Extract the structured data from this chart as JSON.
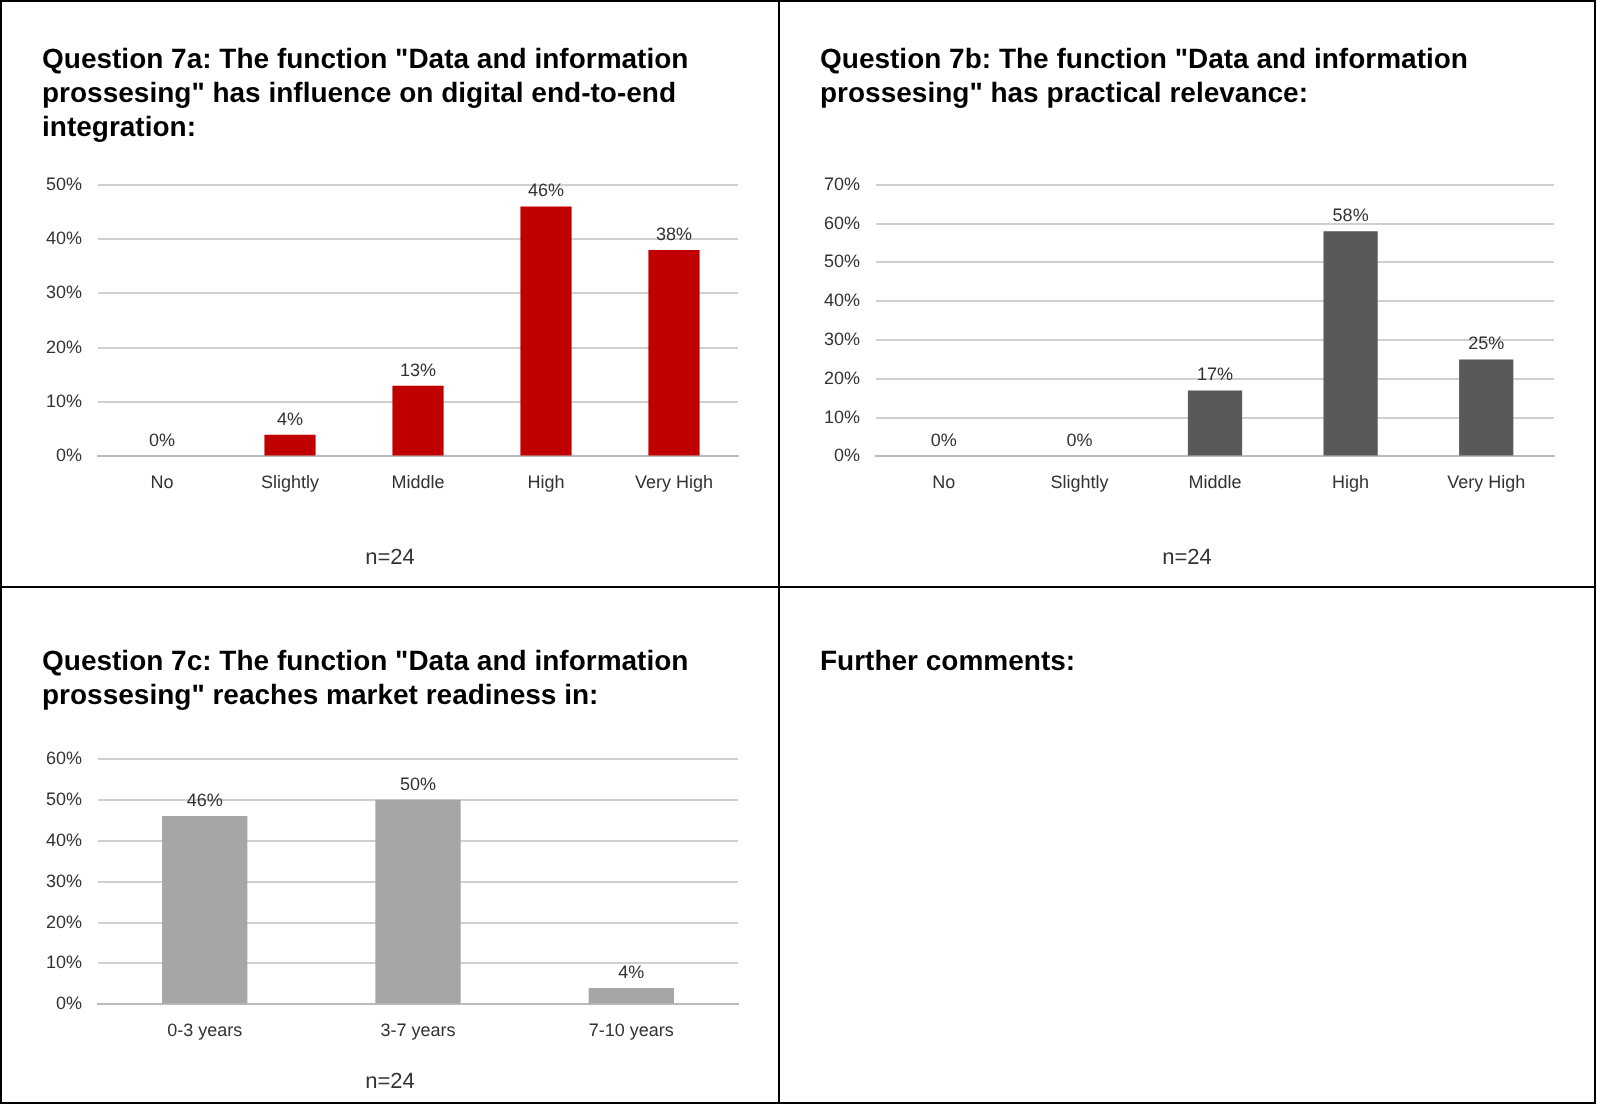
{
  "chart_data": [
    {
      "type": "bar",
      "title": "Question 7a: The function \"Data and information prossesing\" has influence on digital end-to-end integration:",
      "categories": [
        "No",
        "Slightly",
        "Middle",
        "High",
        "Very High"
      ],
      "values": [
        0,
        4,
        13,
        46,
        38
      ],
      "value_labels": [
        "0%",
        "4%",
        "13%",
        "46%",
        "38%"
      ],
      "color": "#c00000",
      "ylim": [
        0,
        50
      ],
      "yticks": [
        {
          "value": 0,
          "label": "0%"
        },
        {
          "value": 10,
          "label": "10%"
        },
        {
          "value": 20,
          "label": "20%"
        },
        {
          "value": 30,
          "label": "30%"
        },
        {
          "value": 40,
          "label": "40%"
        },
        {
          "value": 50,
          "label": "50%"
        }
      ],
      "grid": "y",
      "legend": false,
      "annotations": [
        "n=24"
      ]
    },
    {
      "type": "bar",
      "title": "Question 7b: The function \"Data and information prossesing\" has practical relevance:",
      "categories": [
        "No",
        "Slightly",
        "Middle",
        "High",
        "Very High"
      ],
      "values": [
        0,
        0,
        17,
        58,
        25
      ],
      "value_labels": [
        "0%",
        "0%",
        "17%",
        "58%",
        "25%"
      ],
      "color": "#595959",
      "ylim": [
        0,
        70
      ],
      "yticks": [
        {
          "value": 0,
          "label": "0%"
        },
        {
          "value": 10,
          "label": "10%"
        },
        {
          "value": 20,
          "label": "20%"
        },
        {
          "value": 30,
          "label": "30%"
        },
        {
          "value": 40,
          "label": "40%"
        },
        {
          "value": 50,
          "label": "50%"
        },
        {
          "value": 60,
          "label": "60%"
        },
        {
          "value": 70,
          "label": "70%"
        }
      ],
      "grid": "y",
      "legend": false,
      "annotations": [
        "n=24"
      ]
    },
    {
      "type": "bar",
      "title": "Question 7c: The function \"Data and information prossesing\" reaches market readiness in:",
      "categories": [
        "0-3 years",
        "3-7 years",
        "7-10 years"
      ],
      "values": [
        46,
        50,
        4
      ],
      "value_labels": [
        "46%",
        "50%",
        "4%"
      ],
      "color": "#a6a6a6",
      "ylim": [
        0,
        60
      ],
      "yticks": [
        {
          "value": 0,
          "label": "0%"
        },
        {
          "value": 10,
          "label": "10%"
        },
        {
          "value": 20,
          "label": "20%"
        },
        {
          "value": 30,
          "label": "30%"
        },
        {
          "value": 40,
          "label": "40%"
        },
        {
          "value": 50,
          "label": "50%"
        },
        {
          "value": 60,
          "label": "60%"
        }
      ],
      "grid": "y",
      "legend": false,
      "annotations": [
        "n=24"
      ]
    },
    {
      "type": "other",
      "title": "Further comments:"
    }
  ]
}
